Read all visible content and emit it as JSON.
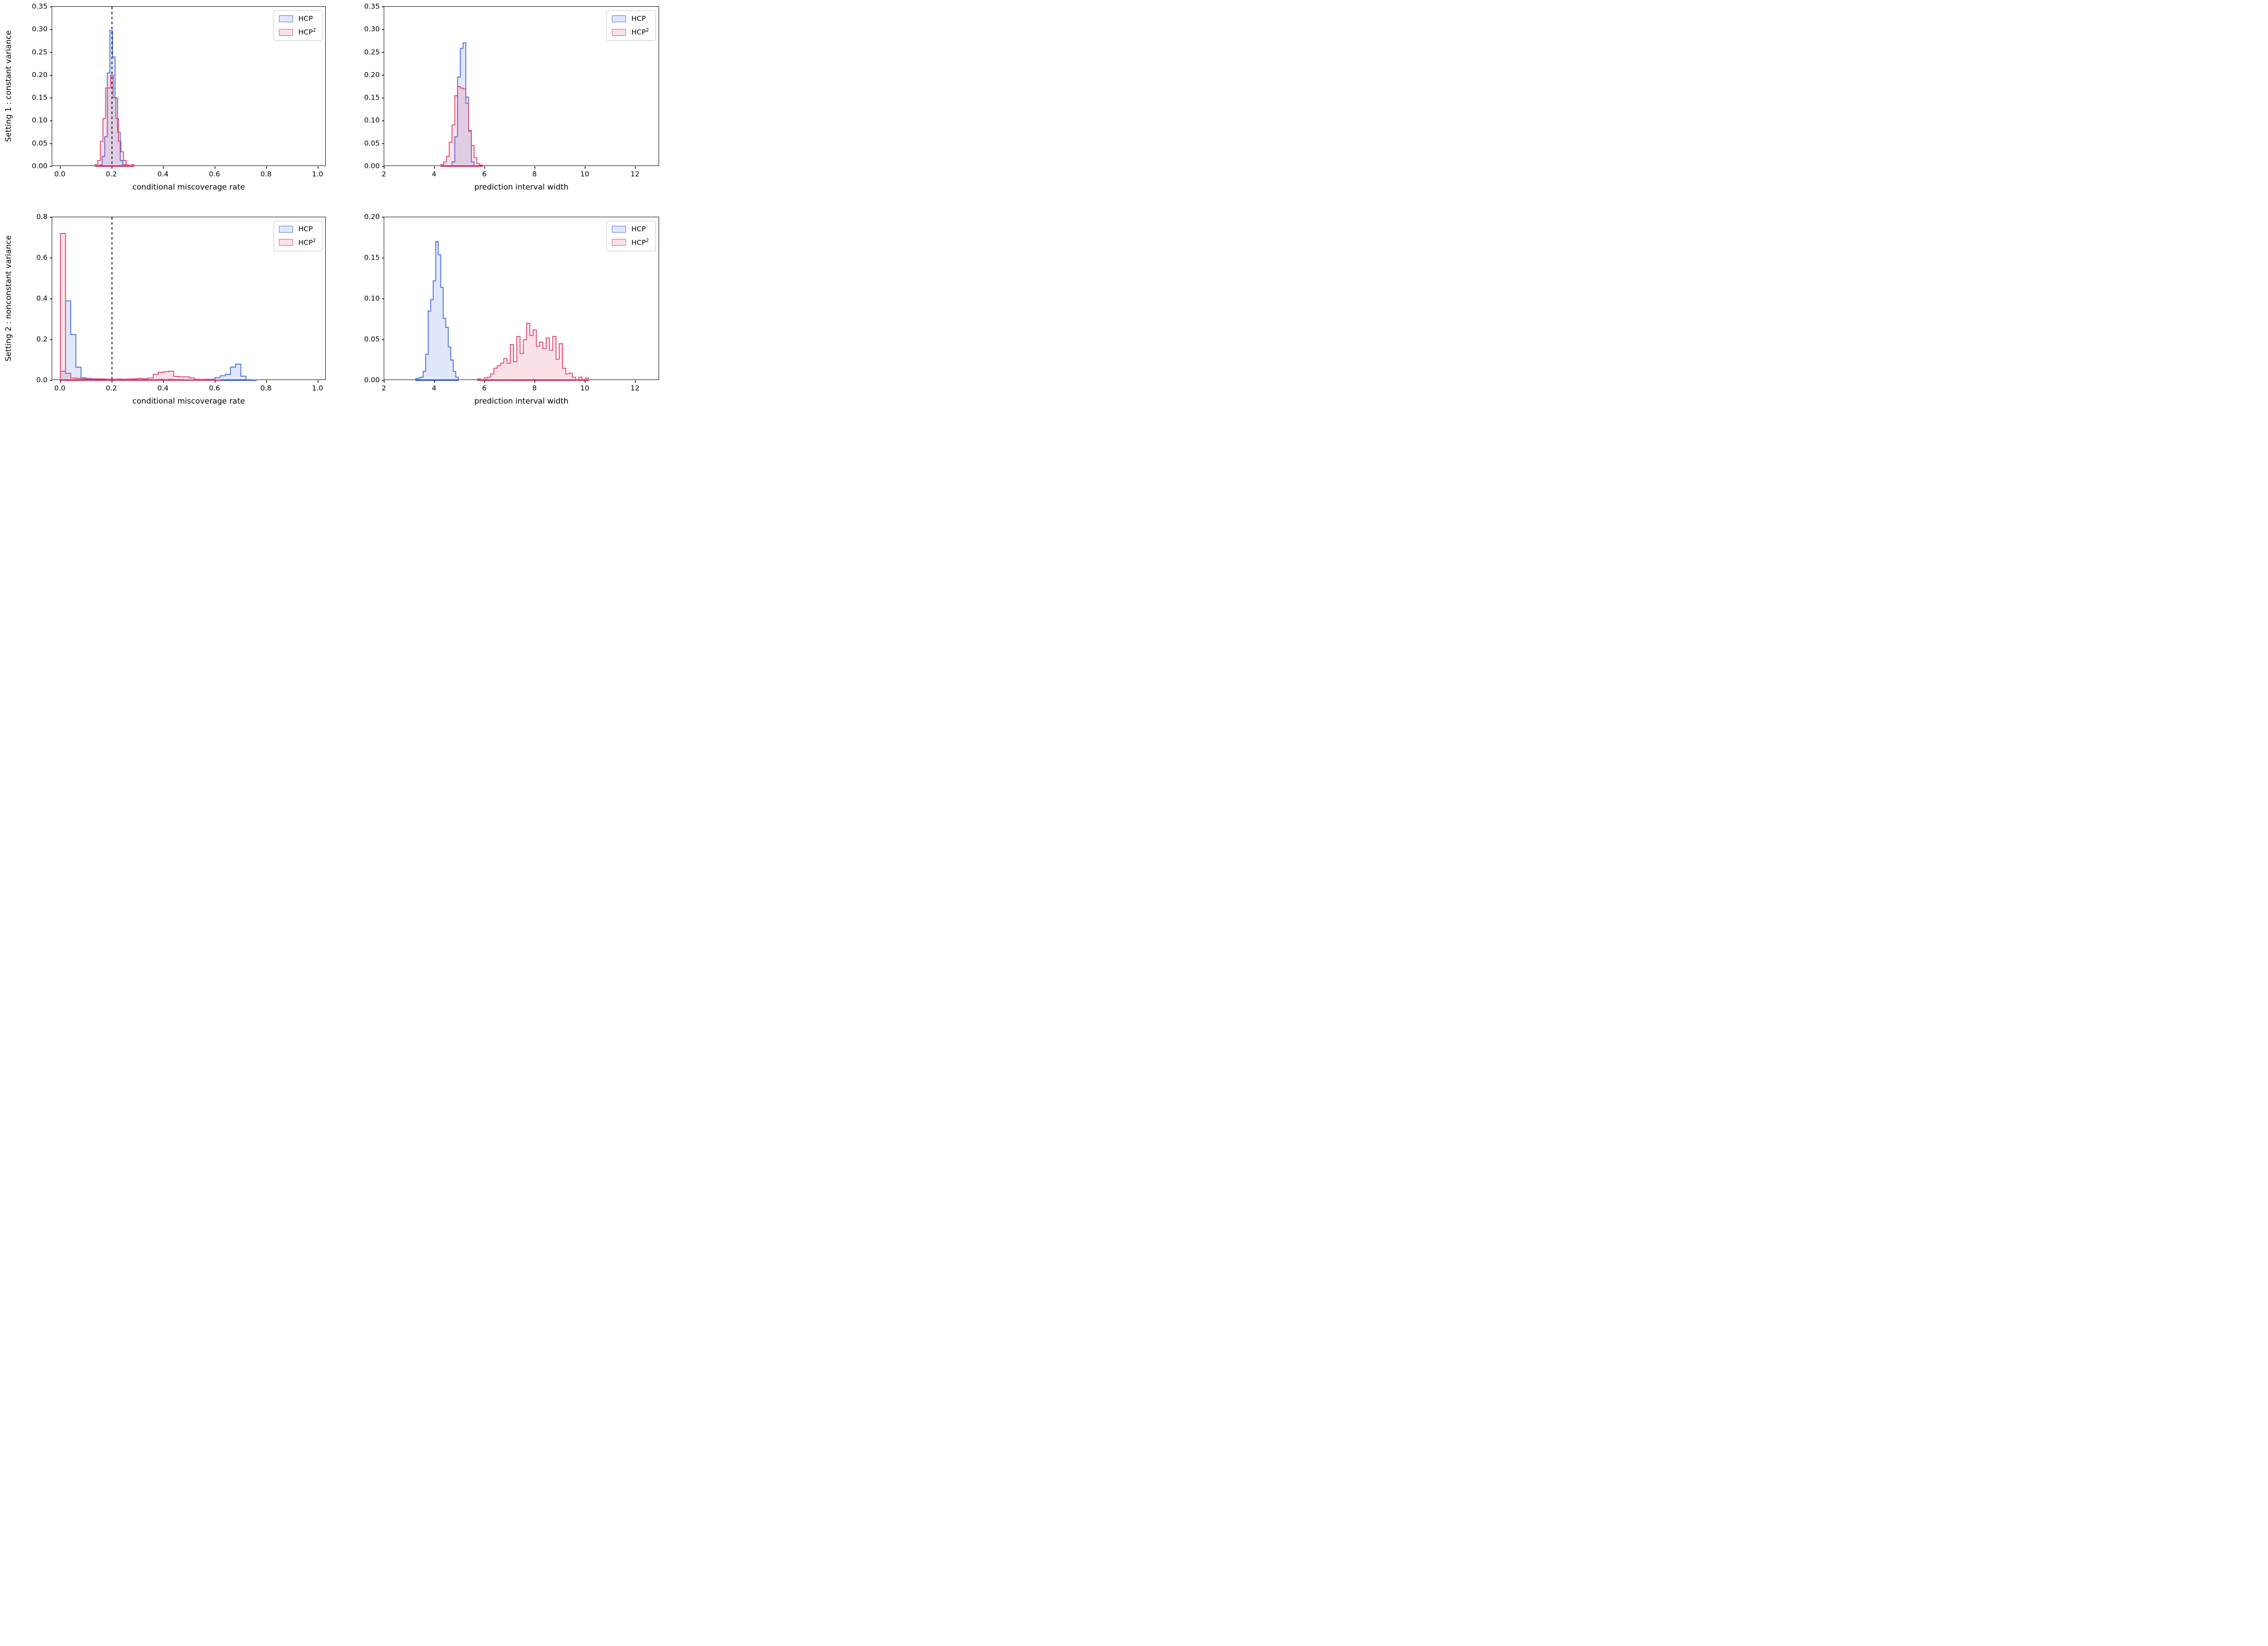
{
  "figure": {
    "background": "#ffffff",
    "n_rows": 2,
    "n_cols": 2
  },
  "colors": {
    "hcp_edge": "#4a6ee0",
    "hcp_fill": "rgba(74,110,224,0.17)",
    "hcp2_edge": "#e0476f",
    "hcp2_fill": "rgba(224,71,111,0.16)",
    "vline": "#000000",
    "spine": "#000000"
  },
  "legend": {
    "items": [
      {
        "series": "hcp",
        "label": "HCP",
        "sup": ""
      },
      {
        "series": "hcp2",
        "label": "HCP",
        "sup": "2"
      }
    ],
    "position": "upper right"
  },
  "chart_data": [
    {
      "id": "setting1-miscoverage",
      "type": "histogram",
      "row": 0,
      "col": 0,
      "row_label": "Setting 1 : constant variance",
      "xlabel": "conditional miscoverage rate",
      "xlim": [
        -0.032,
        1.032
      ],
      "ylim": [
        0,
        0.35
      ],
      "xticks": [
        0.0,
        0.2,
        0.4,
        0.6,
        0.8,
        1.0
      ],
      "xtick_labels": [
        "0.0",
        "0.2",
        "0.4",
        "0.6",
        "0.8",
        "1.0"
      ],
      "yticks": [
        0.0,
        0.05,
        0.1,
        0.15,
        0.2,
        0.25,
        0.3,
        0.35
      ],
      "ytick_labels": [
        "0.00",
        "0.05",
        "0.10",
        "0.15",
        "0.20",
        "0.25",
        "0.30",
        "0.35"
      ],
      "grid": false,
      "vline": 0.2,
      "series": [
        {
          "name": "HCP",
          "color_key": "hcp",
          "bin_start": 0.152,
          "bin_width": 0.01,
          "heights": [
            0.003,
            0.022,
            0.065,
            0.205,
            0.298,
            0.24,
            0.15,
            0.075,
            0.013,
            0.004
          ]
        },
        {
          "name": "HCP2",
          "color_key": "hcp2",
          "bin_start": 0.135,
          "bin_width": 0.01,
          "heights": [
            0.004,
            0.013,
            0.055,
            0.105,
            0.172,
            0.172,
            0.2,
            0.151,
            0.105,
            0.055,
            0.032,
            0.013,
            0.004,
            0.0,
            0.004
          ]
        }
      ]
    },
    {
      "id": "setting1-interval-width",
      "type": "histogram",
      "row": 0,
      "col": 1,
      "row_label": "",
      "xlabel": "prediction interval width",
      "xlim": [
        2.0,
        12.95
      ],
      "ylim": [
        0,
        0.35
      ],
      "xticks": [
        2,
        4,
        6,
        8,
        10,
        12
      ],
      "xtick_labels": [
        "2",
        "4",
        "6",
        "8",
        "10",
        "12"
      ],
      "yticks": [
        0.0,
        0.05,
        0.1,
        0.15,
        0.2,
        0.25,
        0.3,
        0.35
      ],
      "ytick_labels": [
        "0.00",
        "0.05",
        "0.10",
        "0.15",
        "0.20",
        "0.25",
        "0.30",
        "0.35"
      ],
      "grid": false,
      "vline": null,
      "series": [
        {
          "name": "HCP",
          "color_key": "hcp",
          "bin_start": 4.7,
          "bin_width": 0.11,
          "heights": [
            0.01,
            0.065,
            0.196,
            0.259,
            0.271,
            0.152,
            0.079,
            0.01
          ]
        },
        {
          "name": "HCP2",
          "color_key": "hcp2",
          "bin_start": 4.26,
          "bin_width": 0.11,
          "heights": [
            0.004,
            0.01,
            0.022,
            0.053,
            0.091,
            0.155,
            0.175,
            0.172,
            0.17,
            0.138,
            0.077,
            0.046,
            0.019,
            0.006,
            0.003
          ]
        }
      ]
    },
    {
      "id": "setting2-miscoverage",
      "type": "histogram",
      "row": 1,
      "col": 0,
      "row_label": "Setting 2 : nonconstant variance",
      "xlabel": "conditional miscoverage rate",
      "xlim": [
        -0.032,
        1.032
      ],
      "ylim": [
        0,
        0.8
      ],
      "xticks": [
        0.0,
        0.2,
        0.4,
        0.6,
        0.8,
        1.0
      ],
      "xtick_labels": [
        "0.0",
        "0.2",
        "0.4",
        "0.6",
        "0.8",
        "1.0"
      ],
      "yticks": [
        0.0,
        0.2,
        0.4,
        0.6,
        0.8
      ],
      "ytick_labels": [
        "0.0",
        "0.2",
        "0.4",
        "0.6",
        "0.8"
      ],
      "grid": false,
      "vline": 0.2,
      "series": [
        {
          "name": "HCP",
          "color_key": "hcp",
          "bin_start": 0.0,
          "bin_width": 0.02,
          "heights": [
            0.045,
            0.39,
            0.225,
            0.065,
            0.013,
            0.01,
            0.008,
            0.007,
            0.006,
            0.005,
            0.005,
            0.004,
            0.005,
            0.004,
            0.005,
            0.004,
            0.005,
            0.004,
            0.004,
            0.005,
            0.004,
            0.005,
            0.004,
            0.004,
            0.003,
            0.003,
            0.003,
            0.004,
            0.005,
            0.006,
            0.014,
            0.023,
            0.03,
            0.065,
            0.08,
            0.021,
            0.004,
            0.002
          ]
        },
        {
          "name": "HCP2",
          "color_key": "hcp2",
          "bin_start": 0.0,
          "bin_width": 0.02,
          "heights": [
            0.72,
            0.035,
            0.012,
            0.01,
            0.008,
            0.008,
            0.007,
            0.008,
            0.007,
            0.006,
            0.006,
            0.007,
            0.006,
            0.007,
            0.008,
            0.01,
            0.008,
            0.012,
            0.03,
            0.04,
            0.043,
            0.045,
            0.02,
            0.018,
            0.018,
            0.013,
            0.006,
            0.005,
            0.006,
            0.003,
            0.002
          ]
        }
      ]
    },
    {
      "id": "setting2-interval-width",
      "type": "histogram",
      "row": 1,
      "col": 1,
      "row_label": "",
      "xlabel": "prediction interval width",
      "xlim": [
        2.0,
        12.95
      ],
      "ylim": [
        0,
        0.2
      ],
      "xticks": [
        2,
        4,
        6,
        8,
        10,
        12
      ],
      "xtick_labels": [
        "2",
        "4",
        "6",
        "8",
        "10",
        "12"
      ],
      "yticks": [
        0.0,
        0.05,
        0.1,
        0.15,
        0.2
      ],
      "ytick_labels": [
        "0.00",
        "0.05",
        "0.10",
        "0.15",
        "0.20"
      ],
      "grid": false,
      "vline": null,
      "series": [
        {
          "name": "HCP",
          "color_key": "hcp",
          "bin_start": 3.25,
          "bin_width": 0.1,
          "heights": [
            0.002,
            0.003,
            0.004,
            0.011,
            0.032,
            0.085,
            0.099,
            0.122,
            0.17,
            0.154,
            0.114,
            0.076,
            0.065,
            0.041,
            0.025,
            0.011,
            0.004
          ]
        },
        {
          "name": "HCP2",
          "color_key": "hcp2",
          "bin_start": 5.72,
          "bin_width": 0.13,
          "heights": [
            0.002,
            0.0,
            0.003,
            0.004,
            0.008,
            0.015,
            0.018,
            0.021,
            0.027,
            0.021,
            0.044,
            0.023,
            0.054,
            0.033,
            0.05,
            0.07,
            0.055,
            0.062,
            0.042,
            0.047,
            0.039,
            0.052,
            0.037,
            0.054,
            0.026,
            0.045,
            0.015,
            0.008,
            0.009,
            0.004,
            0.001,
            0.004,
            0.0,
            0.003
          ]
        }
      ]
    }
  ]
}
